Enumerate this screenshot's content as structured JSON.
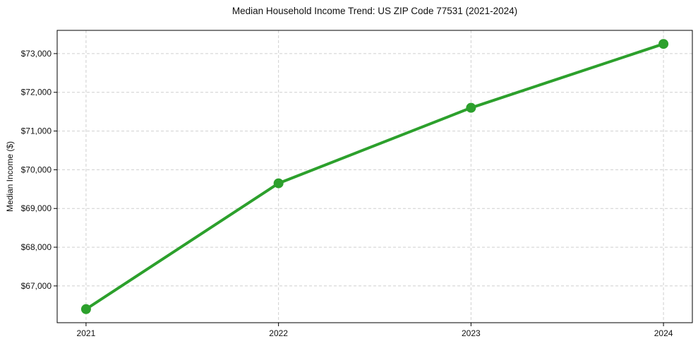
{
  "chart_data": {
    "type": "line",
    "title": "Median Household Income Trend: US ZIP Code 77531 (2021-2024)",
    "xlabel": "",
    "ylabel": "Median Income ($)",
    "categories": [
      "2021",
      "2022",
      "2023",
      "2024"
    ],
    "series": [
      {
        "name": "Median Household Income",
        "values": [
          66400,
          69650,
          71600,
          73250
        ],
        "color": "#2ca02c",
        "marker": "circle"
      }
    ],
    "ylim": [
      66050,
      73600
    ],
    "yticks": [
      67000,
      68000,
      69000,
      70000,
      71000,
      72000,
      73000
    ],
    "ytick_labels": [
      "$67,000",
      "$68,000",
      "$69,000",
      "$70,000",
      "$71,000",
      "$72,000",
      "$73,000"
    ],
    "grid": "both",
    "grid_style": "dashed",
    "legend": "none"
  },
  "colors": {
    "line": "#2ca02c",
    "grid": "#cfcfcf",
    "spine": "#000000",
    "text": "#111111",
    "background": "#ffffff"
  }
}
